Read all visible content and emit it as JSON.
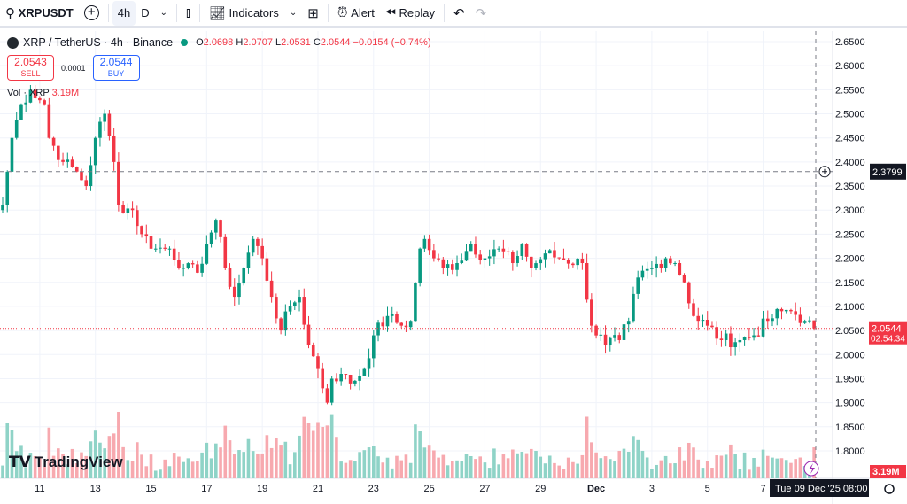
{
  "toolbar": {
    "symbol": "XRPUSDT",
    "interval_4h": "4h",
    "interval_d": "D",
    "indicators": "Indicators",
    "alert": "Alert",
    "replay": "Replay"
  },
  "legend": {
    "title": "XRP / TetherUS · 4h · Binance",
    "o_label": "O",
    "o": "2.0698",
    "h_label": "H",
    "h": "2.0707",
    "l_label": "L",
    "l": "2.0531",
    "c_label": "C",
    "c": "2.0544",
    "change": "−0.0154 (−0.74%)"
  },
  "trade": {
    "sell_price": "2.0543",
    "sell_label": "SELL",
    "spread": "0.0001",
    "buy_price": "2.0544",
    "buy_label": "BUY"
  },
  "volume": {
    "label": "Vol · XRP",
    "value": "3.19M"
  },
  "logo": "TradingView",
  "colors": {
    "up": "#089981",
    "down": "#f23645",
    "up_vol": "#8fd3c7",
    "down_vol": "#f7a9af"
  },
  "chart_data": {
    "type": "candlestick",
    "symbol": "XRP / TetherUS",
    "interval": "4h",
    "ylim": [
      1.76,
      2.67
    ],
    "y_ticks": [
      "2.6500",
      "2.6000",
      "2.5500",
      "2.5000",
      "2.4500",
      "2.4000",
      "2.3500",
      "2.3000",
      "2.2500",
      "2.2000",
      "2.1500",
      "2.1000",
      "2.0500",
      "2.0000",
      "1.9500",
      "1.9000",
      "1.8500",
      "1.8000"
    ],
    "x_ticks": [
      {
        "label": "11",
        "i": 8
      },
      {
        "label": "13",
        "i": 20
      },
      {
        "label": "15",
        "i": 32
      },
      {
        "label": "17",
        "i": 44
      },
      {
        "label": "19",
        "i": 56
      },
      {
        "label": "21",
        "i": 68
      },
      {
        "label": "23",
        "i": 80
      },
      {
        "label": "25",
        "i": 92
      },
      {
        "label": "27",
        "i": 104
      },
      {
        "label": "29",
        "i": 116
      },
      {
        "label": "Dec",
        "i": 128
      },
      {
        "label": "3",
        "i": 140
      },
      {
        "label": "5",
        "i": 152
      },
      {
        "label": "7",
        "i": 164
      }
    ],
    "close_waypoints": [
      [
        0,
        2.31
      ],
      [
        2,
        2.45
      ],
      [
        4,
        2.52
      ],
      [
        6,
        2.55
      ],
      [
        9,
        2.52
      ],
      [
        10,
        2.45
      ],
      [
        13,
        2.4
      ],
      [
        16,
        2.38
      ],
      [
        18,
        2.35
      ],
      [
        20,
        2.45
      ],
      [
        22,
        2.5
      ],
      [
        24,
        2.4
      ],
      [
        25,
        2.31
      ],
      [
        28,
        2.3
      ],
      [
        30,
        2.25
      ],
      [
        33,
        2.22
      ],
      [
        36,
        2.22
      ],
      [
        39,
        2.18
      ],
      [
        42,
        2.17
      ],
      [
        44,
        2.23
      ],
      [
        46,
        2.28
      ],
      [
        48,
        2.18
      ],
      [
        50,
        2.12
      ],
      [
        52,
        2.18
      ],
      [
        54,
        2.24
      ],
      [
        56,
        2.2
      ],
      [
        58,
        2.12
      ],
      [
        60,
        2.05
      ],
      [
        62,
        2.1
      ],
      [
        64,
        2.12
      ],
      [
        66,
        2.02
      ],
      [
        68,
        1.97
      ],
      [
        70,
        1.9
      ],
      [
        71,
        1.95
      ],
      [
        73,
        1.96
      ],
      [
        75,
        1.94
      ],
      [
        78,
        1.97
      ],
      [
        80,
        2.04
      ],
      [
        83,
        2.08
      ],
      [
        86,
        2.06
      ],
      [
        88,
        2.07
      ],
      [
        90,
        2.22
      ],
      [
        91,
        2.24
      ],
      [
        93,
        2.2
      ],
      [
        95,
        2.18
      ],
      [
        98,
        2.19
      ],
      [
        101,
        2.23
      ],
      [
        104,
        2.2
      ],
      [
        107,
        2.22
      ],
      [
        110,
        2.19
      ],
      [
        112,
        2.23
      ],
      [
        114,
        2.18
      ],
      [
        117,
        2.21
      ],
      [
        120,
        2.2
      ],
      [
        125,
        2.19
      ],
      [
        127,
        2.06
      ],
      [
        130,
        2.02
      ],
      [
        133,
        2.03
      ],
      [
        135,
        2.07
      ],
      [
        137,
        2.16
      ],
      [
        140,
        2.18
      ],
      [
        143,
        2.2
      ],
      [
        145,
        2.19
      ],
      [
        147,
        2.15
      ],
      [
        149,
        2.08
      ],
      [
        152,
        2.06
      ],
      [
        155,
        2.03
      ],
      [
        159,
        2.03
      ],
      [
        162,
        2.04
      ],
      [
        165,
        2.07
      ],
      [
        168,
        2.09
      ],
      [
        170,
        2.09
      ],
      [
        173,
        2.07
      ],
      [
        175,
        2.0544
      ]
    ],
    "last_price": "2.0544",
    "countdown": "02:54:34",
    "crosshair": {
      "price": "2.3799",
      "time": "Tue 09 Dec '25   08:00"
    },
    "last_volume": "3.19M"
  }
}
